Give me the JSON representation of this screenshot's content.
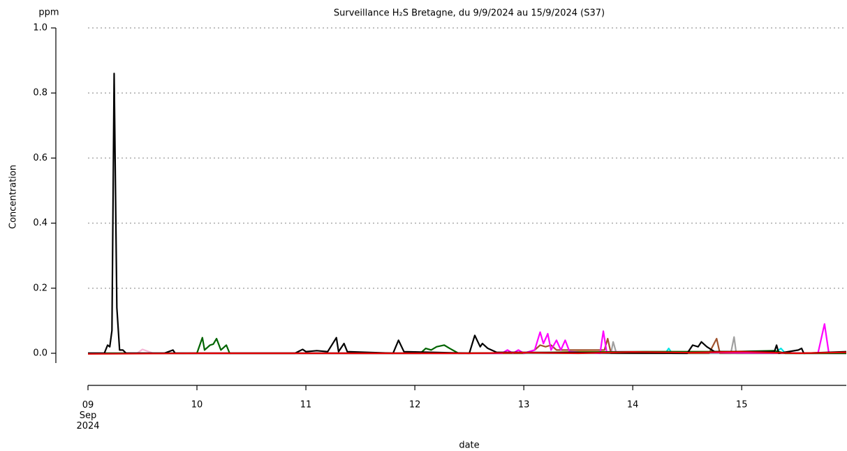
{
  "chart_data": {
    "type": "line",
    "title": "Surveillance H₂S Bretagne, du 9/9/2024 au 15/9/2024 (S37)",
    "y_unit": "ppm",
    "y_label": "Concentration",
    "x_label": "date",
    "xlim": [
      9,
      15.96
    ],
    "ylim": [
      -0.03,
      1.0
    ],
    "xticks": [
      {
        "value": 9,
        "label": "09\nSep\n2024"
      },
      10,
      11,
      12,
      13,
      14,
      15
    ],
    "yticks": [
      {
        "value": 0,
        "label": "0.0"
      },
      0.2,
      0.4,
      0.6,
      0.8,
      {
        "value": 1,
        "label": "1.0"
      }
    ],
    "grid": true,
    "series": [
      {
        "color": "#f4b6d6",
        "x": [
          9,
          9.45,
          9.5,
          9.6,
          15.96
        ],
        "values": [
          0,
          0,
          0.012,
          0,
          0
        ]
      },
      {
        "color": "#e8a33a",
        "x": [
          9,
          13,
          13.5,
          15.96
        ],
        "values": [
          0,
          0,
          0.005,
          0
        ]
      },
      {
        "color": "#00e5e5",
        "x": [
          9,
          14.3,
          14.33,
          14.36,
          15.3,
          15.36,
          15.4,
          15.96
        ],
        "values": [
          0,
          0,
          0.015,
          0,
          0,
          0.015,
          0,
          0
        ]
      },
      {
        "color": "#a0a0a0",
        "x": [
          9,
          13.8,
          13.82,
          13.85,
          14.9,
          14.93,
          14.95,
          15.96
        ],
        "values": [
          0,
          0,
          0.035,
          0,
          0,
          0.05,
          0,
          0
        ]
      },
      {
        "color": "#a0522d",
        "x": [
          9,
          13,
          13.1,
          13.15,
          13.2,
          13.25,
          13.3,
          13.74,
          13.77,
          13.8,
          14.7,
          14.77,
          14.8,
          15.96
        ],
        "values": [
          0,
          0,
          0.01,
          0.025,
          0.02,
          0.025,
          0.01,
          0.01,
          0.045,
          0,
          0,
          0.045,
          0,
          0
        ]
      },
      {
        "color": "#ff00ff",
        "x": [
          9,
          12.8,
          12.85,
          12.9,
          12.95,
          13,
          13.1,
          13.15,
          13.18,
          13.22,
          13.25,
          13.3,
          13.34,
          13.38,
          13.42,
          13.7,
          13.73,
          13.76,
          15.7,
          15.76,
          15.8,
          15.96
        ],
        "values": [
          0,
          0,
          0.01,
          0,
          0.01,
          0,
          0.01,
          0.065,
          0.03,
          0.06,
          0.01,
          0.04,
          0.01,
          0.04,
          0.005,
          0,
          0.068,
          0.005,
          0,
          0.09,
          0,
          0
        ]
      },
      {
        "color": "#006400",
        "x": [
          9,
          10,
          10.05,
          10.07,
          10.12,
          10.15,
          10.18,
          10.22,
          10.27,
          10.3,
          12.05,
          12.1,
          12.15,
          12.2,
          12.27,
          12.32,
          12.4,
          14.1,
          14.3,
          14.9,
          15.3,
          15.4,
          15.96
        ],
        "values": [
          0,
          0,
          0.048,
          0.01,
          0.025,
          0.028,
          0.045,
          0.01,
          0.025,
          0,
          0,
          0.015,
          0.01,
          0.02,
          0.025,
          0.015,
          0,
          0.005,
          0.005,
          0.005,
          0.008,
          0,
          0
        ]
      },
      {
        "color": "#000000",
        "x": [
          9,
          9.15,
          9.18,
          9.2,
          9.22,
          9.24,
          9.265,
          9.29,
          9.32,
          9.35,
          9.7,
          9.78,
          9.8,
          10.9,
          10.97,
          11,
          11.1,
          11.2,
          11.28,
          11.3,
          11.35,
          11.38,
          11.8,
          11.85,
          11.9,
          12.5,
          12.55,
          12.6,
          12.62,
          12.67,
          12.75,
          14.5,
          14.55,
          14.6,
          14.63,
          14.68,
          14.75,
          15.3,
          15.32,
          15.34,
          15.52,
          15.55,
          15.57,
          15.96
        ],
        "values": [
          0,
          0,
          0.025,
          0.02,
          0.07,
          0.86,
          0.14,
          0.01,
          0.01,
          0,
          0,
          0.01,
          0,
          0,
          0.012,
          0.005,
          0.008,
          0.005,
          0.048,
          0.005,
          0.03,
          0.005,
          0,
          0.04,
          0.005,
          0,
          0.055,
          0.02,
          0.03,
          0.015,
          0.003,
          0,
          0.025,
          0.02,
          0.035,
          0.02,
          0.005,
          0.005,
          0.025,
          0,
          0.01,
          0.015,
          0,
          0.005
        ]
      },
      {
        "color": "#e00000",
        "x": [
          9,
          10,
          10.5,
          11,
          12.5,
          13,
          13.5,
          14,
          14.5,
          15,
          15.5,
          15.96
        ],
        "values": [
          -0.002,
          0,
          0,
          0,
          0,
          0.002,
          0,
          0.004,
          0.002,
          0.005,
          0,
          0.003
        ]
      }
    ]
  }
}
